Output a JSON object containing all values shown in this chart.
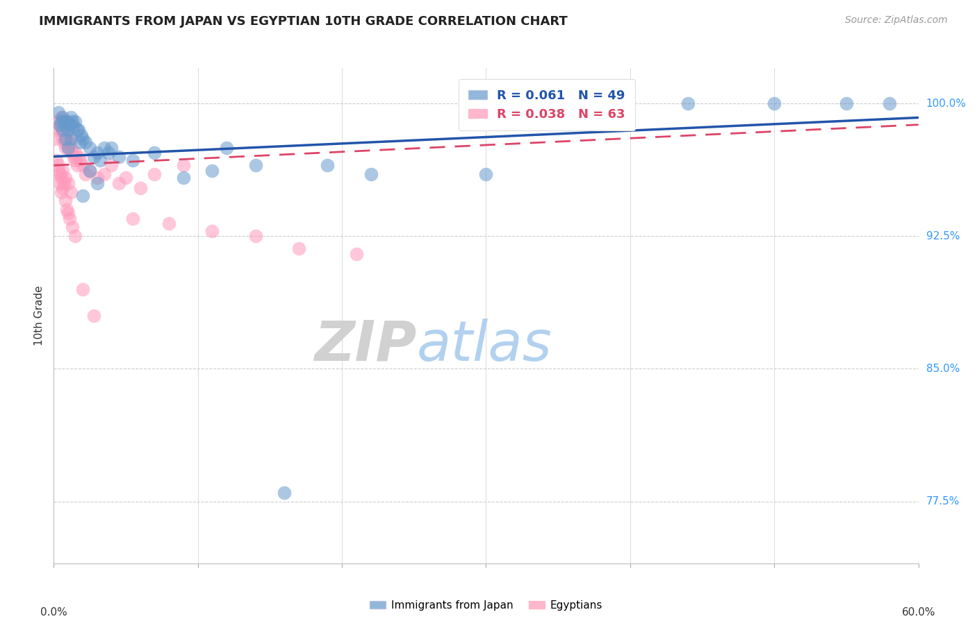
{
  "title": "IMMIGRANTS FROM JAPAN VS EGYPTIAN 10TH GRADE CORRELATION CHART",
  "source": "Source: ZipAtlas.com",
  "ylabel": "10th Grade",
  "ylabel_ticks": [
    77.5,
    85.0,
    92.5,
    100.0
  ],
  "ylabel_tick_labels": [
    "77.5%",
    "85.0%",
    "92.5%",
    "100.0%"
  ],
  "xlim": [
    0.0,
    60.0
  ],
  "ylim": [
    74.0,
    102.0
  ],
  "xtick_positions": [
    0,
    10,
    20,
    30,
    40,
    50,
    60
  ],
  "legend_japan_label": "Immigrants from Japan",
  "legend_egypt_label": "Egyptians",
  "R_japan": 0.061,
  "N_japan": 49,
  "R_egypt": 0.038,
  "N_egypt": 63,
  "blue_color": "#6699CC",
  "pink_color": "#FF99BB",
  "trend_blue_color": "#2255AA",
  "trend_pink_color": "#DD4466",
  "watermark_zip": "ZIP",
  "watermark_atlas": "atlas",
  "background_color": "#FFFFFF",
  "grid_color": "#CCCCCC",
  "right_axis_color": "#3399FF",
  "title_color": "#222222",
  "japan_x": [
    0.3,
    0.5,
    0.6,
    0.7,
    0.8,
    0.9,
    1.0,
    1.1,
    1.2,
    1.3,
    1.4,
    1.5,
    1.6,
    1.7,
    1.8,
    1.9,
    2.0,
    2.2,
    2.5,
    2.8,
    3.0,
    3.2,
    3.5,
    3.8,
    4.0,
    4.5,
    5.5,
    7.0,
    9.0,
    11.0,
    14.0,
    19.0,
    22.0,
    30.0,
    37.0,
    44.0,
    50.0,
    55.0,
    58.0,
    1.0,
    1.2,
    0.4,
    0.6,
    0.8,
    2.0,
    2.5,
    3.0,
    12.0,
    16.0
  ],
  "japan_y": [
    99.5,
    99.0,
    99.2,
    99.0,
    98.8,
    99.0,
    98.5,
    98.8,
    99.2,
    99.0,
    98.7,
    99.0,
    98.5,
    98.5,
    97.8,
    98.2,
    98.0,
    97.8,
    97.5,
    97.0,
    97.2,
    96.8,
    97.5,
    97.2,
    97.5,
    97.0,
    96.8,
    97.2,
    95.8,
    96.2,
    96.5,
    96.5,
    96.0,
    96.0,
    100.0,
    100.0,
    100.0,
    100.0,
    100.0,
    97.5,
    98.0,
    98.8,
    98.5,
    98.0,
    94.8,
    96.2,
    95.5,
    97.5,
    78.0
  ],
  "egypt_x": [
    0.1,
    0.2,
    0.3,
    0.4,
    0.5,
    0.5,
    0.6,
    0.6,
    0.7,
    0.7,
    0.8,
    0.8,
    0.9,
    0.9,
    1.0,
    1.0,
    1.1,
    1.2,
    1.3,
    1.4,
    1.5,
    1.5,
    1.6,
    1.7,
    1.8,
    2.0,
    2.2,
    2.5,
    3.0,
    3.5,
    4.0,
    4.5,
    5.0,
    6.0,
    7.0,
    9.0,
    0.3,
    0.4,
    0.5,
    0.6,
    0.7,
    0.8,
    1.0,
    1.2,
    0.2,
    0.3,
    0.4,
    0.5,
    0.6,
    5.5,
    8.0,
    11.0,
    14.0,
    17.0,
    21.0,
    0.8,
    0.9,
    1.0,
    1.1,
    1.3,
    1.5,
    2.0,
    2.8
  ],
  "egypt_y": [
    98.0,
    98.5,
    99.0,
    98.8,
    99.2,
    98.5,
    99.0,
    98.0,
    98.5,
    97.8,
    98.2,
    97.5,
    97.8,
    98.0,
    97.5,
    98.0,
    97.8,
    97.5,
    97.2,
    97.0,
    97.2,
    96.8,
    96.5,
    97.0,
    96.8,
    96.5,
    96.0,
    96.2,
    95.8,
    96.0,
    96.5,
    95.5,
    95.8,
    95.2,
    96.0,
    96.5,
    96.5,
    96.0,
    95.8,
    96.2,
    95.5,
    95.8,
    95.5,
    95.0,
    96.8,
    96.2,
    95.5,
    95.0,
    95.2,
    93.5,
    93.2,
    92.8,
    92.5,
    91.8,
    91.5,
    94.5,
    94.0,
    93.8,
    93.5,
    93.0,
    92.5,
    89.5,
    88.0
  ]
}
